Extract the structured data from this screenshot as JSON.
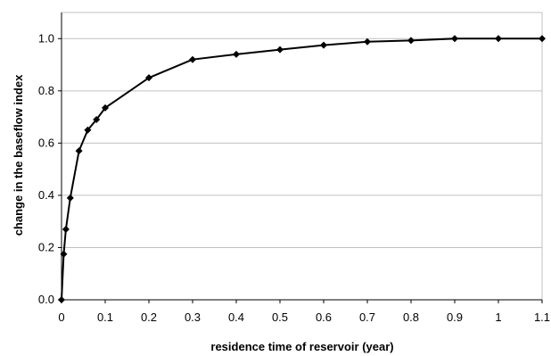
{
  "chart_data": {
    "type": "line",
    "title": "",
    "xlabel": "residence time of reservoir (year)",
    "ylabel": "change in the baseflow index",
    "xlim": [
      0,
      1.1
    ],
    "ylim": [
      0,
      1.1
    ],
    "x_ticks": [
      "0",
      "0.1",
      "0.2",
      "0.3",
      "0.4",
      "0.5",
      "0.6",
      "0.7",
      "0.8",
      "0.9",
      "1",
      "1.1"
    ],
    "y_ticks": [
      "0.0",
      "0.2",
      "0.4",
      "0.6",
      "0.8",
      "1.0"
    ],
    "grid": "horizontal major gridlines",
    "legend": "none",
    "series": [
      {
        "color": "#000000",
        "marker": "diamond",
        "points": [
          {
            "x": 0.0,
            "y": 0.0
          },
          {
            "x": 0.005,
            "y": 0.175
          },
          {
            "x": 0.01,
            "y": 0.27
          },
          {
            "x": 0.02,
            "y": 0.39
          },
          {
            "x": 0.04,
            "y": 0.57
          },
          {
            "x": 0.06,
            "y": 0.65
          },
          {
            "x": 0.08,
            "y": 0.69
          },
          {
            "x": 0.1,
            "y": 0.735
          },
          {
            "x": 0.2,
            "y": 0.85
          },
          {
            "x": 0.3,
            "y": 0.92
          },
          {
            "x": 0.4,
            "y": 0.94
          },
          {
            "x": 0.5,
            "y": 0.958
          },
          {
            "x": 0.6,
            "y": 0.975
          },
          {
            "x": 0.7,
            "y": 0.988
          },
          {
            "x": 0.8,
            "y": 0.993
          },
          {
            "x": 0.9,
            "y": 1.0
          },
          {
            "x": 1.0,
            "y": 1.0
          },
          {
            "x": 1.1,
            "y": 1.0
          }
        ]
      }
    ]
  }
}
